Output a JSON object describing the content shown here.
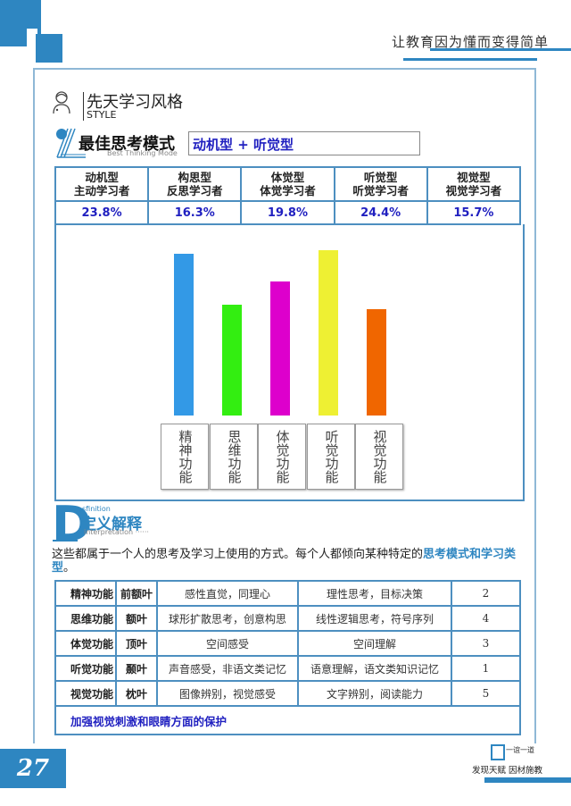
{
  "header": {
    "slogan": "让教育因为懂而变得简单"
  },
  "section": {
    "title_cn": "先天学习风格",
    "title_en": "STYLE",
    "icon": "person-icon"
  },
  "best_thinking": {
    "title": "最佳思考模式",
    "subtitle": "Best Thinking Mode",
    "value": "动机型 + 听觉型"
  },
  "types_table": {
    "columns": [
      {
        "line1": "动机型",
        "line2": "主动学习者",
        "percent": "23.8%"
      },
      {
        "line1": "构思型",
        "line2": "反思学习者",
        "percent": "16.3%"
      },
      {
        "line1": "体觉型",
        "line2": "体觉学习者",
        "percent": "19.8%"
      },
      {
        "line1": "听觉型",
        "line2": "听觉学习者",
        "percent": "24.4%"
      },
      {
        "line1": "视觉型",
        "line2": "视觉学习者",
        "percent": "15.7%"
      }
    ]
  },
  "chart_data": {
    "type": "bar",
    "title": "",
    "categories": [
      "精神功能",
      "思维功能",
      "体觉功能",
      "听觉功能",
      "视觉功能"
    ],
    "values": [
      23.8,
      16.3,
      19.8,
      24.4,
      15.7
    ],
    "colors": [
      "#3399e6",
      "#33ee11",
      "#dd00cc",
      "#eef033",
      "#f06600"
    ],
    "xlabel": "",
    "ylabel": "",
    "ylim": [
      0,
      25
    ],
    "grid": false,
    "legend": "none"
  },
  "chart_labels": [
    "精神功能",
    "思维功能",
    "体觉功能",
    "听觉功能",
    "视觉功能"
  ],
  "definition": {
    "big_letter": "D",
    "small_en": "sfinition",
    "title": "定义解释",
    "subtitle": "interpretation ······",
    "text_plain": "这些都属于一个人的思考及学习上使用的方式。每个人都倾向某种特定的",
    "text_highlight": "思考模式和学习类型",
    "text_end": "。"
  },
  "function_table": {
    "rows": [
      {
        "func": "精神功能",
        "lobe": "前额叶",
        "a": "感性直觉，同理心",
        "b": "理性思考，目标决策",
        "rank": "2"
      },
      {
        "func": "思维功能",
        "lobe": "额叶",
        "a": "球形扩散思考，创意构思",
        "b": "线性逻辑思考，符号序列",
        "rank": "4"
      },
      {
        "func": "体觉功能",
        "lobe": "顶叶",
        "a": "空间感受",
        "b": "空间理解",
        "rank": "3"
      },
      {
        "func": "听觉功能",
        "lobe": "颞叶",
        "a": "声音感受，非语文类记忆",
        "b": "语意理解，语文类知识记忆",
        "rank": "1"
      },
      {
        "func": "视觉功能",
        "lobe": "枕叶",
        "a": "图像辨别，视觉感受",
        "b": "文字辨别，阅读能力",
        "rank": "5"
      }
    ],
    "advice": "加强视觉刺激和眼睛方面的保护"
  },
  "footer": {
    "page_number": "27",
    "logo_text": "一谊一道",
    "slogan": "发现天赋 因材施教"
  }
}
